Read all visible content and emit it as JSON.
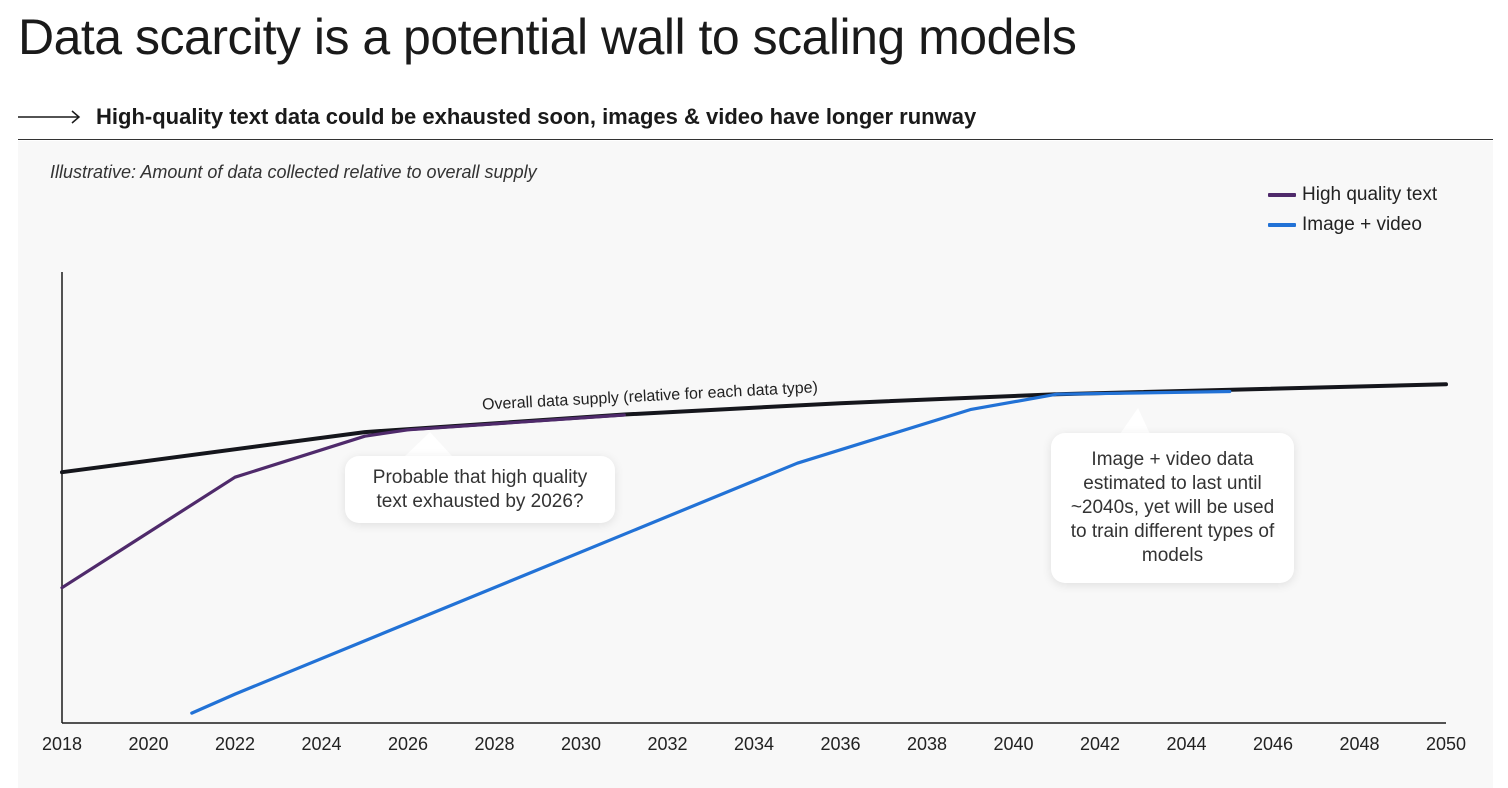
{
  "title": "Data scarcity is a potential wall to scaling models",
  "subtitle": "High-quality text data could be exhausted soon, images & video have longer runway",
  "note": "Illustrative: Amount of data collected relative to overall supply",
  "colors": {
    "high_quality_text": "#4f2a6b",
    "image_video": "#2272d6",
    "overall_supply": "#15161c",
    "axis": "#1a1a1a"
  },
  "legend": [
    {
      "label": "High quality text",
      "color": "#4f2a6b"
    },
    {
      "label": "Image + video",
      "color": "#2272d6"
    }
  ],
  "annotations": {
    "supply_label": "Overall data supply (relative for each data type)",
    "text_callout": "Probable that high quality\ntext exhausted by 2026?",
    "image_callout": "Image + video data\nestimated to last until\n~2040s, yet will be used\nto train different types of\nmodels"
  },
  "chart_data": {
    "type": "line",
    "title": "Data scarcity is a potential wall to scaling models",
    "subtitle": "Illustrative: Amount of data collected relative to overall supply",
    "xlabel": "",
    "ylabel": "",
    "xlim": [
      2018,
      2050
    ],
    "ylim": [
      0,
      100
    ],
    "x_ticks": [
      "2018",
      "2020",
      "2022",
      "2024",
      "2026",
      "2028",
      "2030",
      "2032",
      "2034",
      "2036",
      "2038",
      "2040",
      "2042",
      "2044",
      "2046",
      "2048",
      "2050"
    ],
    "grid": false,
    "legend_position": "top-right",
    "series": [
      {
        "name": "High quality text",
        "x": [
          2018,
          2022,
          2025,
          2026,
          2031
        ],
        "y": [
          30,
          54.5,
          63.6,
          65,
          68.3
        ]
      },
      {
        "name": "Image + video",
        "x": [
          2021,
          2022,
          2035,
          2039,
          2041,
          2045
        ],
        "y": [
          2.2,
          6.4,
          57.6,
          69.5,
          72.9,
          73.5
        ]
      },
      {
        "x": [
          2018,
          2025,
          2031,
          2036,
          2041,
          2050
        ],
        "y": [
          55.6,
          64.5,
          68.4,
          70.9,
          72.9,
          75.1
        ]
      }
    ]
  }
}
